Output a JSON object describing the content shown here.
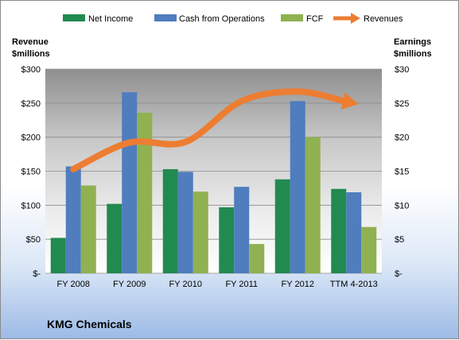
{
  "chart_data": {
    "type": "bar",
    "title": "KMG Chemicals",
    "categories": [
      "FY 2008",
      "FY 2009",
      "FY 2010",
      "FY 2011",
      "FY 2012",
      "TTM 4-2013"
    ],
    "series": [
      {
        "name": "Net Income",
        "axis": "right",
        "color": "#218a50",
        "values": [
          5.2,
          10.2,
          15.3,
          9.7,
          13.8,
          12.4
        ]
      },
      {
        "name": "Cash from Operations",
        "axis": "right",
        "color": "#4f7dbe",
        "values": [
          15.7,
          26.6,
          14.9,
          12.7,
          25.3,
          11.9
        ]
      },
      {
        "name": "FCF",
        "axis": "right",
        "color": "#8fb151",
        "values": [
          12.9,
          23.6,
          12.0,
          4.3,
          20.0,
          6.8
        ]
      }
    ],
    "line_series": {
      "name": "Revenues",
      "axis": "left",
      "color": "#ed7d31",
      "style": "smooth-arrow",
      "values": [
        153,
        192,
        193,
        253,
        267,
        250
      ]
    },
    "left_axis": {
      "label_line1": "Revenue",
      "label_line2": "$millions",
      "ylim": [
        0,
        300
      ],
      "ticks": [
        "$-",
        "$50",
        "$100",
        "$150",
        "$200",
        "$250",
        "$300"
      ]
    },
    "right_axis": {
      "label_line1": "Earnings",
      "label_line2": "$millions",
      "ylim": [
        0,
        30
      ],
      "ticks": [
        "$-",
        "$5",
        "$10",
        "$15",
        "$20",
        "$25",
        "$30"
      ]
    },
    "grid": true,
    "legend_position": "top"
  }
}
